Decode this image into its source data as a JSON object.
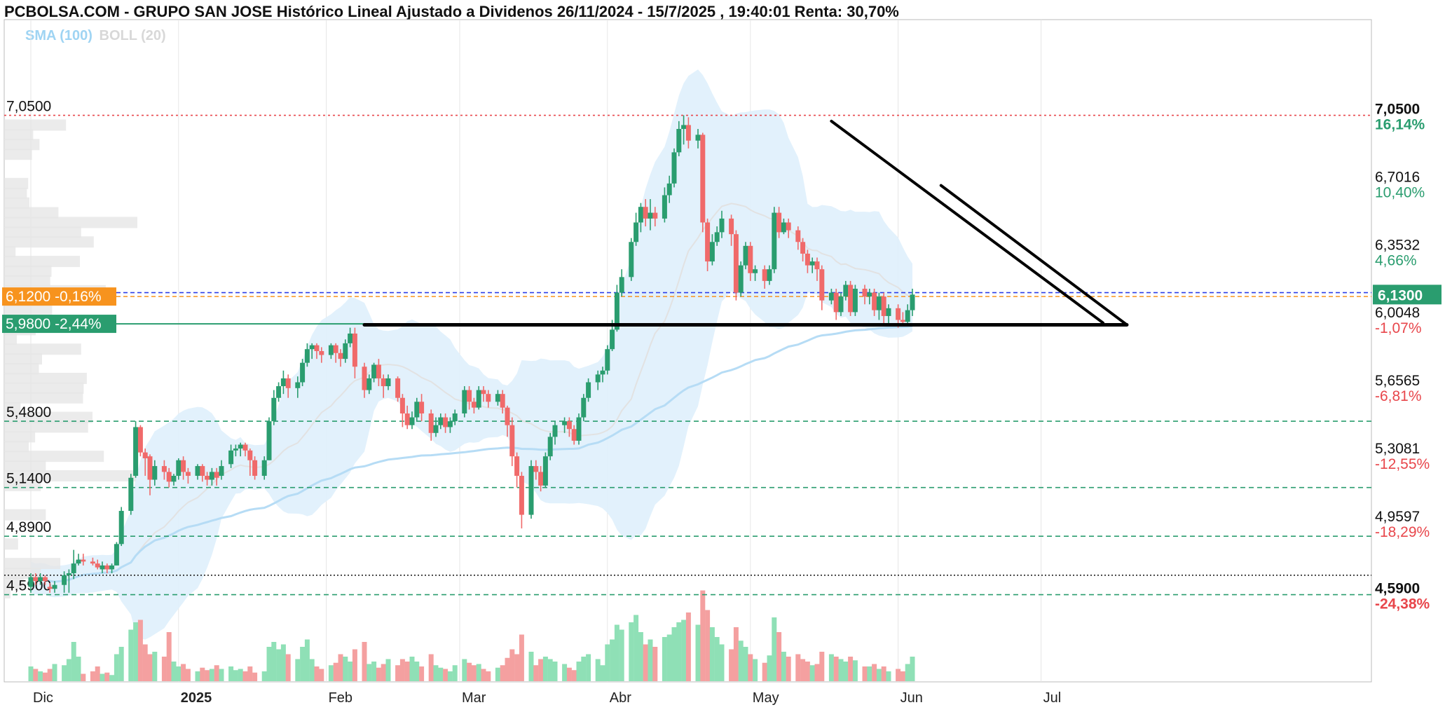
{
  "title": "PCBOLSA.COM - GRUPO SAN JOSE Histórico Lineal Ajustado a Dividenos 26/11/2024 - 15/7/2025 , 19:40:01 Renta: 30,70%",
  "legend": {
    "sma": "SMA (100)",
    "boll": "BOLL (20)"
  },
  "colors": {
    "up": "#2a9d6f",
    "down": "#f06a6a",
    "volUp": "#8fe0b6",
    "volDown": "#f4a0a0",
    "band": "#dff0fc",
    "sma100": "#b6dcf5",
    "sma20": "#e2e2e2",
    "orange": "#f7931e",
    "green": "#2a9d6f",
    "red": "#e8464b",
    "blue": "#2b3ee8"
  },
  "chart_data": {
    "type": "candlestick",
    "title": "PCBOLSA.COM - GRUPO SAN JOSE Histórico Lineal Ajustado a Dividenos 26/11/2024 - 15/7/2025 , 19:40:01 Renta: 30,70%",
    "x_range": [
      "26/11/2024",
      "15/7/2025"
    ],
    "x_ticks": [
      {
        "label": "Dic",
        "day": 5
      },
      {
        "label": "2025",
        "day": 36
      },
      {
        "label": "Feb",
        "day": 67
      },
      {
        "label": "Mar",
        "day": 95
      },
      {
        "label": "Abr",
        "day": 126
      },
      {
        "label": "May",
        "day": 156
      },
      {
        "label": "Jun",
        "day": 187
      },
      {
        "label": "Jul",
        "day": 217
      }
    ],
    "y_range": [
      4.38,
      7.3
    ],
    "y_axis_right": [
      {
        "price": "7,0500",
        "pct": "16,14%",
        "bold": true
      },
      {
        "price": "6,7016",
        "pct": "10,40%"
      },
      {
        "price": "6,3532",
        "pct": "4,66%"
      },
      {
        "price": "6,0048",
        "pct": "-1,07%"
      },
      {
        "price": "5,6565",
        "pct": "-6,81%"
      },
      {
        "price": "5,3081",
        "pct": "-12,55%"
      },
      {
        "price": "4,9597",
        "pct": "-18,29%"
      },
      {
        "price": "4,5900",
        "pct": "-24,38%",
        "bold": true
      }
    ],
    "current_price": "6,1300",
    "left_markers": [
      {
        "label": "6,1200  -0,16%",
        "value": 6.12,
        "color": "orange"
      },
      {
        "label": "5,9800  -2,44%",
        "value": 5.98,
        "color": "green"
      }
    ],
    "horizontal_levels": [
      {
        "label": "7,0500",
        "value": 7.05,
        "style": "dotted-red"
      },
      {
        "label": "",
        "value": 6.14,
        "style": "dashed-blue"
      },
      {
        "label": "",
        "value": 6.12,
        "style": "dashed-orange"
      },
      {
        "label": "5,4800",
        "value": 5.48,
        "style": "dashed-green"
      },
      {
        "label": "5,1400",
        "value": 5.14,
        "style": "dashed-green"
      },
      {
        "label": "4,8900",
        "value": 4.89,
        "style": "dashed-green"
      },
      {
        "label": "",
        "value": 4.69,
        "style": "dotted-black"
      },
      {
        "label": "4,5900",
        "value": 4.59,
        "style": "dashed-green"
      }
    ],
    "trendlines": [
      {
        "from": [
          75,
          5.975
        ],
        "to": [
          235,
          5.975
        ]
      },
      {
        "from": [
          173,
          7.02
        ],
        "to": [
          230,
          5.985
        ]
      },
      {
        "from": [
          196,
          6.69
        ],
        "to": [
          235,
          5.975
        ]
      }
    ],
    "candles": [
      [
        5,
        4.63,
        4.68,
        4.6,
        4.7,
        0.12
      ],
      [
        6,
        4.68,
        4.66,
        4.64,
        4.7,
        0.1
      ],
      [
        7,
        4.66,
        4.68,
        4.64,
        4.7,
        0.08
      ],
      [
        8,
        4.68,
        4.66,
        4.64,
        4.69,
        0.07
      ],
      [
        9,
        4.63,
        4.62,
        4.6,
        4.65,
        0.1
      ],
      [
        10,
        4.62,
        4.64,
        4.6,
        4.66,
        0.14
      ],
      [
        12,
        4.64,
        4.69,
        4.6,
        4.71,
        0.13
      ],
      [
        13,
        4.69,
        4.7,
        4.6,
        4.72,
        0.18
      ],
      [
        14,
        4.7,
        4.75,
        4.67,
        4.82,
        0.32
      ],
      [
        15,
        4.75,
        4.77,
        4.74,
        4.8,
        0.2
      ],
      [
        16,
        4.77,
        4.76,
        4.74,
        4.8,
        0.06
      ],
      [
        18,
        4.76,
        4.75,
        4.74,
        4.78,
        0.08
      ],
      [
        19,
        4.75,
        4.73,
        4.72,
        4.77,
        0.12
      ],
      [
        20,
        4.72,
        4.74,
        4.7,
        4.76,
        0.06
      ],
      [
        21,
        4.74,
        4.72,
        4.7,
        4.75,
        0.07
      ],
      [
        22,
        4.72,
        4.74,
        4.7,
        4.75,
        0.05
      ],
      [
        23,
        4.74,
        4.85,
        4.74,
        4.86,
        0.22
      ],
      [
        24,
        4.85,
        5.02,
        4.84,
        5.04,
        0.28
      ],
      [
        26,
        5.02,
        5.19,
        5.0,
        5.21,
        0.42
      ],
      [
        27,
        5.2,
        5.45,
        5.19,
        5.48,
        0.48
      ],
      [
        28,
        5.45,
        5.32,
        5.3,
        5.46,
        0.5
      ],
      [
        29,
        5.32,
        5.29,
        5.2,
        5.34,
        0.3
      ],
      [
        30,
        5.3,
        5.18,
        5.1,
        5.31,
        0.22
      ],
      [
        31,
        5.18,
        5.25,
        5.15,
        5.28,
        0.24
      ],
      [
        33,
        5.25,
        5.22,
        5.18,
        5.28,
        0.2
      ],
      [
        34,
        5.22,
        5.17,
        5.14,
        5.24,
        0.4
      ],
      [
        35,
        5.17,
        5.2,
        5.15,
        5.21,
        0.16
      ],
      [
        36,
        5.2,
        5.28,
        5.18,
        5.29,
        0.12
      ],
      [
        37,
        5.28,
        5.22,
        5.18,
        5.3,
        0.14
      ],
      [
        38,
        5.22,
        5.2,
        5.16,
        5.24,
        0.1
      ],
      [
        40,
        5.2,
        5.25,
        5.18,
        5.26,
        0.08
      ],
      [
        41,
        5.25,
        5.2,
        5.17,
        5.26,
        0.11
      ],
      [
        42,
        5.2,
        5.18,
        5.15,
        5.22,
        0.09
      ],
      [
        43,
        5.18,
        5.22,
        5.15,
        5.24,
        0.1
      ],
      [
        44,
        5.22,
        5.19,
        5.15,
        5.24,
        0.13
      ],
      [
        45,
        5.2,
        5.25,
        5.18,
        5.28,
        0.1
      ],
      [
        47,
        5.26,
        5.33,
        5.24,
        5.36,
        0.12
      ],
      [
        48,
        5.33,
        5.34,
        5.3,
        5.36,
        0.09
      ],
      [
        49,
        5.34,
        5.36,
        5.3,
        5.37,
        0.1
      ],
      [
        50,
        5.36,
        5.33,
        5.3,
        5.37,
        0.08
      ],
      [
        51,
        5.33,
        5.28,
        5.2,
        5.34,
        0.12
      ],
      [
        52,
        5.28,
        5.2,
        5.18,
        5.3,
        0.07
      ],
      [
        54,
        5.2,
        5.28,
        5.18,
        5.3,
        0.08
      ],
      [
        55,
        5.28,
        5.48,
        5.28,
        5.5,
        0.28
      ],
      [
        56,
        5.48,
        5.6,
        5.46,
        5.64,
        0.32
      ],
      [
        57,
        5.6,
        5.66,
        5.58,
        5.68,
        0.26
      ],
      [
        58,
        5.66,
        5.7,
        5.62,
        5.74,
        0.3
      ],
      [
        59,
        5.7,
        5.65,
        5.6,
        5.72,
        0.22
      ],
      [
        61,
        5.65,
        5.68,
        5.6,
        5.71,
        0.18
      ],
      [
        62,
        5.68,
        5.78,
        5.66,
        5.8,
        0.28
      ],
      [
        63,
        5.78,
        5.85,
        5.76,
        5.88,
        0.34
      ],
      [
        64,
        5.85,
        5.87,
        5.8,
        5.88,
        0.18
      ],
      [
        65,
        5.87,
        5.84,
        5.8,
        5.88,
        0.12
      ],
      [
        66,
        5.84,
        5.82,
        5.78,
        5.86,
        0.1
      ],
      [
        68,
        5.82,
        5.87,
        5.8,
        5.88,
        0.13
      ],
      [
        69,
        5.87,
        5.83,
        5.78,
        5.88,
        0.15
      ],
      [
        70,
        5.83,
        5.8,
        5.76,
        5.85,
        0.22
      ],
      [
        71,
        5.8,
        5.88,
        5.78,
        5.9,
        0.2
      ],
      [
        72,
        5.88,
        5.93,
        5.86,
        5.96,
        0.16
      ],
      [
        73,
        5.93,
        5.76,
        5.7,
        5.96,
        0.26
      ],
      [
        75,
        5.76,
        5.64,
        5.6,
        5.78,
        0.32
      ],
      [
        76,
        5.64,
        5.7,
        5.62,
        5.72,
        0.14
      ],
      [
        77,
        5.7,
        5.77,
        5.68,
        5.78,
        0.16
      ],
      [
        78,
        5.77,
        5.7,
        5.66,
        5.8,
        0.11
      ],
      [
        79,
        5.7,
        5.66,
        5.6,
        5.72,
        0.14
      ],
      [
        80,
        5.66,
        5.7,
        5.64,
        5.72,
        0.18
      ],
      [
        82,
        5.7,
        5.6,
        5.58,
        5.71,
        0.13
      ],
      [
        83,
        5.6,
        5.52,
        5.45,
        5.62,
        0.18
      ],
      [
        84,
        5.52,
        5.46,
        5.44,
        5.56,
        0.16
      ],
      [
        85,
        5.46,
        5.5,
        5.44,
        5.53,
        0.2
      ],
      [
        86,
        5.5,
        5.58,
        5.48,
        5.6,
        0.16
      ],
      [
        87,
        5.58,
        5.52,
        5.48,
        5.62,
        0.12
      ],
      [
        89,
        5.52,
        5.42,
        5.38,
        5.54,
        0.22
      ],
      [
        90,
        5.42,
        5.46,
        5.4,
        5.5,
        0.13
      ],
      [
        91,
        5.46,
        5.5,
        5.44,
        5.52,
        0.11
      ],
      [
        92,
        5.5,
        5.45,
        5.42,
        5.52,
        0.1
      ],
      [
        93,
        5.45,
        5.48,
        5.42,
        5.5,
        0.08
      ],
      [
        94,
        5.48,
        5.52,
        5.46,
        5.54,
        0.13
      ],
      [
        96,
        5.52,
        5.64,
        5.5,
        5.66,
        0.18
      ],
      [
        97,
        5.64,
        5.58,
        5.54,
        5.66,
        0.15
      ],
      [
        98,
        5.58,
        5.55,
        5.52,
        5.6,
        0.13
      ],
      [
        99,
        5.55,
        5.64,
        5.54,
        5.66,
        0.14
      ],
      [
        100,
        5.64,
        5.62,
        5.58,
        5.66,
        0.1
      ],
      [
        101,
        5.62,
        5.58,
        5.55,
        5.64,
        0.08
      ],
      [
        103,
        5.58,
        5.62,
        5.56,
        5.64,
        0.11
      ],
      [
        104,
        5.62,
        5.55,
        5.52,
        5.64,
        0.13
      ],
      [
        105,
        5.55,
        5.46,
        5.4,
        5.56,
        0.19
      ],
      [
        106,
        5.46,
        5.3,
        5.25,
        5.5,
        0.26
      ],
      [
        107,
        5.3,
        5.2,
        5.14,
        5.32,
        0.22
      ],
      [
        108,
        5.2,
        5.0,
        4.93,
        5.22,
        0.38
      ],
      [
        110,
        5.0,
        5.25,
        4.98,
        5.28,
        0.24
      ],
      [
        111,
        5.25,
        5.22,
        5.18,
        5.28,
        0.13
      ],
      [
        112,
        5.22,
        5.15,
        5.12,
        5.25,
        0.18
      ],
      [
        113,
        5.15,
        5.3,
        5.14,
        5.32,
        0.2
      ],
      [
        114,
        5.3,
        5.4,
        5.28,
        5.42,
        0.18
      ],
      [
        115,
        5.4,
        5.46,
        5.36,
        5.48,
        0.16
      ],
      [
        117,
        5.46,
        5.48,
        5.42,
        5.5,
        0.14
      ],
      [
        118,
        5.48,
        5.44,
        5.4,
        5.5,
        0.11
      ],
      [
        119,
        5.44,
        5.38,
        5.36,
        5.46,
        0.09
      ],
      [
        120,
        5.38,
        5.5,
        5.36,
        5.52,
        0.16
      ],
      [
        121,
        5.5,
        5.6,
        5.48,
        5.62,
        0.2
      ],
      [
        122,
        5.6,
        5.68,
        5.58,
        5.7,
        0.22
      ],
      [
        124,
        5.68,
        5.72,
        5.64,
        5.74,
        0.18
      ],
      [
        125,
        5.72,
        5.74,
        5.68,
        5.76,
        0.13
      ],
      [
        126,
        5.74,
        5.85,
        5.72,
        5.87,
        0.3
      ],
      [
        127,
        5.85,
        5.95,
        5.84,
        6.0,
        0.34
      ],
      [
        128,
        5.95,
        6.14,
        5.94,
        6.18,
        0.46
      ],
      [
        129,
        6.14,
        6.22,
        6.12,
        6.26,
        0.42
      ],
      [
        131,
        6.22,
        6.4,
        6.2,
        6.42,
        0.48
      ],
      [
        132,
        6.4,
        6.5,
        6.38,
        6.55,
        0.54
      ],
      [
        133,
        6.5,
        6.58,
        6.45,
        6.6,
        0.4
      ],
      [
        134,
        6.58,
        6.52,
        6.48,
        6.62,
        0.3
      ],
      [
        135,
        6.52,
        6.55,
        6.46,
        6.62,
        0.34
      ],
      [
        136,
        6.55,
        6.52,
        6.48,
        6.58,
        0.28
      ],
      [
        138,
        6.52,
        6.64,
        6.5,
        6.68,
        0.36
      ],
      [
        139,
        6.64,
        6.7,
        6.6,
        6.74,
        0.38
      ],
      [
        140,
        6.7,
        6.86,
        6.68,
        6.88,
        0.44
      ],
      [
        141,
        6.86,
        6.98,
        6.84,
        7.02,
        0.48
      ],
      [
        142,
        6.98,
        7.0,
        6.9,
        7.05,
        0.5
      ],
      [
        143,
        7.0,
        6.92,
        6.88,
        7.04,
        0.56
      ],
      [
        145,
        6.92,
        6.95,
        6.88,
        6.98,
        0.46
      ],
      [
        146,
        6.95,
        6.5,
        6.45,
        6.96,
        0.74
      ],
      [
        147,
        6.5,
        6.3,
        6.25,
        6.52,
        0.58
      ],
      [
        148,
        6.3,
        6.4,
        6.28,
        6.44,
        0.44
      ],
      [
        149,
        6.4,
        6.45,
        6.38,
        6.48,
        0.36
      ],
      [
        150,
        6.45,
        6.52,
        6.42,
        6.56,
        0.3
      ],
      [
        152,
        6.52,
        6.44,
        6.38,
        6.54,
        0.26
      ],
      [
        153,
        6.44,
        6.14,
        6.1,
        6.46,
        0.44
      ],
      [
        154,
        6.14,
        6.28,
        6.12,
        6.3,
        0.33
      ],
      [
        155,
        6.28,
        6.38,
        6.26,
        6.4,
        0.28
      ],
      [
        156,
        6.38,
        6.24,
        6.2,
        6.4,
        0.22
      ],
      [
        157,
        6.24,
        6.26,
        6.2,
        6.28,
        0.18
      ],
      [
        159,
        6.26,
        6.2,
        6.16,
        6.28,
        0.15
      ],
      [
        160,
        6.2,
        6.26,
        6.18,
        6.28,
        0.21
      ],
      [
        161,
        6.26,
        6.55,
        6.24,
        6.58,
        0.52
      ],
      [
        162,
        6.55,
        6.45,
        6.42,
        6.58,
        0.4
      ],
      [
        163,
        6.45,
        6.5,
        6.44,
        6.52,
        0.24
      ],
      [
        164,
        6.5,
        6.46,
        6.42,
        6.52,
        0.2
      ],
      [
        166,
        6.46,
        6.4,
        6.36,
        6.48,
        0.22
      ],
      [
        167,
        6.4,
        6.34,
        6.3,
        6.42,
        0.18
      ],
      [
        168,
        6.34,
        6.28,
        6.24,
        6.36,
        0.16
      ],
      [
        169,
        6.28,
        6.3,
        6.24,
        6.32,
        0.13
      ],
      [
        170,
        6.3,
        6.26,
        6.2,
        6.32,
        0.14
      ],
      [
        171,
        6.26,
        6.1,
        6.05,
        6.28,
        0.24
      ],
      [
        173,
        6.1,
        6.14,
        6.08,
        6.16,
        0.22
      ],
      [
        174,
        6.14,
        6.04,
        6.0,
        6.16,
        0.2
      ],
      [
        175,
        6.04,
        6.12,
        6.02,
        6.14,
        0.18
      ],
      [
        176,
        6.12,
        6.18,
        6.1,
        6.2,
        0.16
      ],
      [
        177,
        6.18,
        6.04,
        6.02,
        6.2,
        0.2
      ],
      [
        178,
        6.04,
        6.16,
        6.02,
        6.18,
        0.17
      ],
      [
        180,
        6.16,
        6.12,
        6.08,
        6.18,
        0.12
      ],
      [
        181,
        6.12,
        6.14,
        6.08,
        6.16,
        0.12
      ],
      [
        182,
        6.14,
        6.05,
        6.02,
        6.16,
        0.14
      ],
      [
        183,
        6.05,
        6.12,
        6.0,
        6.14,
        0.1
      ],
      [
        184,
        6.12,
        6.02,
        5.98,
        6.14,
        0.12
      ],
      [
        185,
        6.02,
        6.06,
        5.98,
        6.08,
        0.08
      ],
      [
        187,
        6.06,
        6.0,
        5.96,
        6.08,
        0.1
      ],
      [
        188,
        6.0,
        5.99,
        5.97,
        6.04,
        0.08
      ],
      [
        189,
        5.99,
        6.05,
        5.97,
        6.08,
        0.14
      ],
      [
        190,
        6.05,
        6.13,
        6.02,
        6.16,
        0.2
      ]
    ],
    "volume_scale_max": 0.8
  }
}
